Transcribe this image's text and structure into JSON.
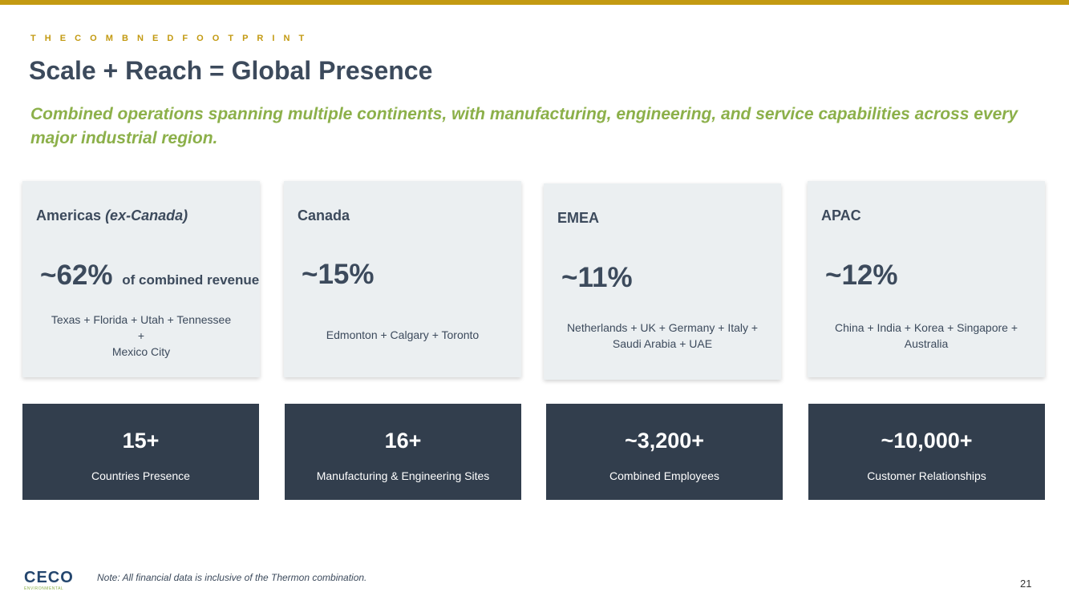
{
  "header": {
    "eyebrow": "T H E   C O M B N E D   F O O T P R I N T",
    "title": "Scale + Reach = Global Presence",
    "subtitle": "Combined operations spanning multiple continents, with manufacturing, engineering, and service capabilities across every major industrial region."
  },
  "regions": [
    {
      "name": "Americas ",
      "name_qualifier": "(ex-Canada)",
      "share": "~62%",
      "share_suffix": "of combined revenue",
      "locations_line1": "Texas + Florida + Utah + Tennessee",
      "locations_line2": "+",
      "locations_line3": "Mexico City"
    },
    {
      "name": "Canada",
      "share": "~15%",
      "locations": "Edmonton + Calgary + Toronto"
    },
    {
      "name": "EMEA",
      "share": "~11%",
      "locations_line1": "Netherlands + UK + Germany + Italy +",
      "locations_line2": "Saudi Arabia + UAE"
    },
    {
      "name": "APAC",
      "share": "~12%",
      "locations_line1": "China + India + Korea + Singapore +",
      "locations_line2": "Australia"
    }
  ],
  "stats": [
    {
      "value": "15+",
      "label": "Countries Presence"
    },
    {
      "value": "16+",
      "label": "Manufacturing & Engineering Sites"
    },
    {
      "value": "~3,200+",
      "label": "Combined Employees"
    },
    {
      "value": "~10,000+",
      "label": "Customer Relationships"
    }
  ],
  "footer": {
    "logo_text": "CECO",
    "logo_subtext": "ENVIRONMENTAL",
    "note": "Note: All financial data is inclusive of the Thermon combination.",
    "page_number": "21"
  },
  "colors": {
    "accent_gold": "#c39a12",
    "title_slate": "#3c4a5c",
    "subtitle_green": "#8cb04a",
    "card_bg": "#ebeff1",
    "stat_bg": "#323e4d"
  }
}
